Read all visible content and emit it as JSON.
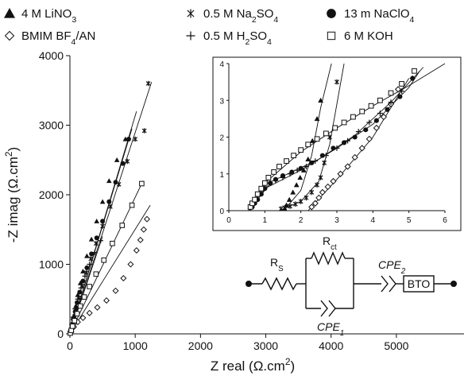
{
  "chart_data": [
    {
      "type": "scatter",
      "title": "",
      "xlabel": "Z real (Ω.cm²)",
      "ylabel": "-Z imag (Ω.cm²)",
      "xlim": [
        0,
        5500
      ],
      "ylim": [
        0,
        4000
      ],
      "xticks": [
        "0",
        "1000",
        "2000",
        "3000",
        "4000",
        "5000"
      ],
      "yticks": [
        "0",
        "1000",
        "2000",
        "3000",
        "4000"
      ],
      "grid": false,
      "legend_position": "top",
      "series": [
        {
          "name": "4 M LiNO₃",
          "marker": "triangle",
          "x": [
            5,
            20,
            40,
            60,
            90,
            120,
            160,
            200,
            260,
            330,
            410,
            500,
            600,
            720,
            850
          ],
          "y": [
            10,
            60,
            150,
            260,
            400,
            560,
            730,
            900,
            1120,
            1360,
            1620,
            1900,
            2200,
            2500,
            2800
          ],
          "fit_x": [
            0,
            1020
          ],
          "fit_y": [
            0,
            3200
          ]
        },
        {
          "name": "0.5 M Na₂SO₄",
          "marker": "star",
          "x": [
            5,
            20,
            40,
            70,
            100,
            140,
            190,
            250,
            320,
            400,
            500,
            620,
            750,
            880,
            1000,
            1140,
            1200
          ],
          "y": [
            10,
            60,
            140,
            250,
            380,
            520,
            690,
            880,
            1080,
            1300,
            1550,
            1830,
            2150,
            2480,
            2800,
            2920,
            3600
          ],
          "fit_x": [
            0,
            1250
          ],
          "fit_y": [
            0,
            3620
          ]
        },
        {
          "name": "13 m NaClO₄",
          "marker": "circle",
          "x": [
            5,
            15,
            30,
            50,
            80,
            110,
            150,
            200,
            260,
            330,
            410,
            500,
            600,
            700,
            810,
            900
          ],
          "y": [
            10,
            50,
            120,
            210,
            320,
            450,
            600,
            760,
            950,
            1150,
            1380,
            1620,
            1900,
            2180,
            2450,
            2800
          ],
          "fit_x": [
            0,
            950
          ],
          "fit_y": [
            0,
            2950
          ]
        },
        {
          "name": "BMIM BF₄/AN",
          "marker": "diamond",
          "x": [
            20,
            60,
            120,
            200,
            300,
            420,
            560,
            700,
            820,
            930,
            1020,
            1080,
            1130,
            1180
          ],
          "y": [
            30,
            100,
            170,
            230,
            300,
            380,
            480,
            620,
            800,
            1000,
            1200,
            1350,
            1500,
            1650
          ],
          "fit_x": [
            0,
            1230
          ],
          "fit_y": [
            0,
            1850
          ]
        },
        {
          "name": "0.5 M H₂SO₄",
          "marker": "plus",
          "x": [
            5,
            15,
            30,
            50,
            80,
            120,
            170,
            230,
            300,
            380,
            470
          ],
          "y": [
            10,
            60,
            140,
            240,
            360,
            500,
            660,
            830,
            1000,
            1170,
            1340
          ],
          "fit_x": [
            0,
            500
          ],
          "fit_y": [
            0,
            1400
          ]
        },
        {
          "name": "6 M KOH",
          "marker": "square",
          "x": [
            5,
            20,
            40,
            70,
            110,
            160,
            220,
            300,
            400,
            520,
            650,
            800,
            950,
            1100
          ],
          "y": [
            10,
            50,
            110,
            190,
            290,
            400,
            530,
            680,
            860,
            1060,
            1300,
            1560,
            1850,
            2160
          ],
          "fit_x": [
            0,
            1120
          ],
          "fit_y": [
            0,
            2200
          ]
        }
      ]
    },
    {
      "type": "scatter",
      "title": "",
      "xlabel": "",
      "ylabel": "",
      "xlim": [
        0,
        6
      ],
      "ylim": [
        0,
        4
      ],
      "xticks": [
        "0",
        "1",
        "2",
        "3",
        "4",
        "5",
        "6"
      ],
      "yticks": [
        "0",
        "1",
        "2",
        "3",
        "4"
      ],
      "grid": false,
      "series": [
        {
          "name": "4 M LiNO₃",
          "marker": "triangle",
          "x": [
            1.55,
            1.6,
            1.68,
            1.78,
            1.88,
            1.98,
            2.08,
            2.2,
            2.32,
            2.45,
            2.55
          ],
          "y": [
            0.05,
            0.15,
            0.3,
            0.5,
            0.7,
            0.9,
            1.1,
            1.4,
            1.9,
            2.5,
            3.0
          ],
          "fit_x": [
            1.52,
            2.0,
            2.3,
            2.55,
            2.85
          ],
          "fit_y": [
            0.0,
            0.55,
            1.5,
            2.8,
            4.0
          ]
        },
        {
          "name": "0.5 M Na₂SO₄",
          "marker": "star",
          "x": [
            1.45,
            1.55,
            1.7,
            1.85,
            2.0,
            2.15,
            2.3,
            2.45,
            2.55,
            2.65,
            2.8,
            3.0
          ],
          "y": [
            0.05,
            0.08,
            0.12,
            0.18,
            0.25,
            0.35,
            0.5,
            0.7,
            0.9,
            1.3,
            2.0,
            3.5
          ],
          "fit_x": [
            1.4,
            2.0,
            2.5,
            2.8,
            3.2
          ],
          "fit_y": [
            0.0,
            0.25,
            0.8,
            1.8,
            4.0
          ]
        },
        {
          "name": "13 m NaClO₄",
          "marker": "circle",
          "x": [
            0.65,
            0.72,
            0.8,
            0.9,
            1.0,
            1.15,
            1.3,
            1.5,
            1.75,
            2.0,
            2.3,
            2.6,
            2.9,
            3.2,
            3.5,
            3.8,
            4.1,
            4.4,
            4.75,
            5.1
          ],
          "y": [
            0.1,
            0.2,
            0.3,
            0.45,
            0.6,
            0.75,
            0.85,
            0.95,
            1.05,
            1.15,
            1.3,
            1.5,
            1.7,
            1.85,
            2.0,
            2.2,
            2.45,
            2.75,
            3.1,
            3.6
          ],
          "fit_x": [
            0.6,
            1.0,
            2.0,
            3.0,
            4.0,
            5.0,
            5.3
          ],
          "fit_y": [
            0.0,
            0.6,
            1.1,
            1.7,
            2.35,
            3.35,
            3.8
          ]
        },
        {
          "name": "BMIM BF₄/AN",
          "marker": "diamond",
          "x": [
            2.3,
            2.4,
            2.5,
            2.6,
            2.75,
            2.9,
            3.1,
            3.3,
            3.5,
            3.7,
            3.9,
            4.1,
            4.3,
            4.5,
            4.7
          ],
          "y": [
            0.1,
            0.2,
            0.35,
            0.5,
            0.65,
            0.8,
            1.0,
            1.2,
            1.45,
            1.7,
            1.95,
            2.25,
            2.55,
            2.9,
            3.3
          ],
          "fit_x": [
            2.2,
            3.0,
            4.0,
            5.0
          ],
          "fit_y": [
            0.0,
            0.85,
            2.0,
            3.6
          ]
        },
        {
          "name": "0.5 M H₂SO₄",
          "marker": "plus",
          "x": [
            0.6,
            0.65,
            0.72,
            0.8,
            0.9,
            1.0,
            1.15,
            1.3,
            1.5,
            1.7,
            1.9,
            2.15,
            2.4,
            2.7,
            3.0,
            3.3,
            3.6,
            3.9,
            4.2,
            4.5,
            4.8,
            5.1
          ],
          "y": [
            0.05,
            0.15,
            0.25,
            0.4,
            0.55,
            0.65,
            0.75,
            0.82,
            0.9,
            1.0,
            1.1,
            1.2,
            1.35,
            1.5,
            1.7,
            1.9,
            2.15,
            2.4,
            2.65,
            2.95,
            3.25,
            3.6
          ],
          "fit_x": [
            0.55,
            1.2,
            2.5,
            3.5,
            4.5,
            5.4
          ],
          "fit_y": [
            0.0,
            0.8,
            1.4,
            2.05,
            2.95,
            3.9
          ]
        },
        {
          "name": "6 M KOH",
          "marker": "square",
          "x": [
            0.6,
            0.65,
            0.72,
            0.8,
            0.9,
            1.0,
            1.1,
            1.25,
            1.4,
            1.6,
            1.8,
            2.0,
            2.2,
            2.45,
            2.7,
            2.95,
            3.2,
            3.45,
            3.7,
            3.95,
            4.2,
            4.5,
            4.8,
            5.15
          ],
          "y": [
            0.1,
            0.2,
            0.3,
            0.45,
            0.6,
            0.75,
            0.9,
            1.05,
            1.2,
            1.35,
            1.5,
            1.65,
            1.8,
            1.95,
            2.1,
            2.25,
            2.4,
            2.55,
            2.7,
            2.85,
            3.0,
            3.2,
            3.45,
            3.8
          ],
          "fit_x": [
            0.55,
            1.0,
            2.0,
            3.0,
            4.0,
            5.0,
            6.0
          ],
          "fit_y": [
            0.0,
            0.75,
            1.6,
            2.25,
            2.85,
            3.4,
            4.0
          ]
        }
      ]
    }
  ],
  "circuit": {
    "rs_label": "R",
    "rs_sub": "S",
    "rct_label": "R",
    "rct_sub": "ct",
    "cpe1_label": "CPE",
    "cpe1_sub": "1",
    "cpe2_label": "CPE",
    "cpe2_sub": "2",
    "bto_label": "BTO"
  }
}
